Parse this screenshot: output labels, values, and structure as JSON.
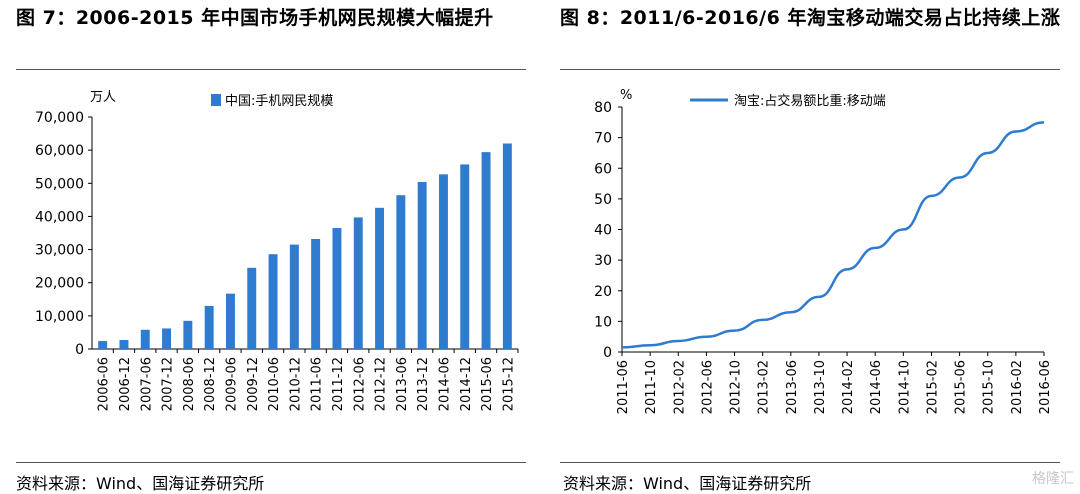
{
  "left": {
    "title": "图 7：2006-2015 年中国市场手机网民规模大幅提升",
    "source": "资料来源：Wind、国海证券研究所"
  },
  "right": {
    "title": "图 8：2011/6-2016/6 年淘宝移动端交易占比持续上涨",
    "source": "资料来源：Wind、国海证券研究所"
  },
  "watermark": "格隆汇",
  "colors": {
    "bar": "#2e7bcf",
    "line": "#2e7bcf"
  },
  "chart_data": [
    {
      "type": "bar",
      "title": "",
      "unit_label": "万人",
      "legend": "中国:手机网民规模",
      "categories": [
        "2006-06",
        "2006-12",
        "2007-06",
        "2007-12",
        "2008-06",
        "2008-12",
        "2009-06",
        "2009-12",
        "2010-06",
        "2010-12",
        "2011-06",
        "2011-12",
        "2012-06",
        "2012-12",
        "2013-06",
        "2013-12",
        "2014-06",
        "2014-12",
        "2015-06",
        "2015-12"
      ],
      "values": [
        2400,
        2700,
        5800,
        6200,
        8500,
        13000,
        16700,
        24500,
        28600,
        31500,
        33200,
        36500,
        39700,
        42600,
        46400,
        50400,
        52700,
        55700,
        59400,
        62000
      ],
      "ylim": [
        0,
        70000
      ],
      "yticks": [
        "0",
        "10,000",
        "20,000",
        "30,000",
        "40,000",
        "50,000",
        "60,000",
        "70,000"
      ],
      "ytick_values": [
        0,
        10000,
        20000,
        30000,
        40000,
        50000,
        60000,
        70000
      ]
    },
    {
      "type": "line",
      "title": "",
      "unit_label": "%",
      "legend": "淘宝:占交易额比重:移动端",
      "x": [
        "2011-06",
        "2011-10",
        "2012-02",
        "2012-06",
        "2012-10",
        "2013-02",
        "2013-06",
        "2013-10",
        "2014-02",
        "2014-06",
        "2014-10",
        "2015-02",
        "2015-06",
        "2015-10",
        "2016-02",
        "2016-06"
      ],
      "xticks": [
        "2011-06",
        "2011-10",
        "2012-02",
        "2012-06",
        "2012-10",
        "2013-02",
        "2013-06",
        "2013-10",
        "2014-02",
        "2014-06",
        "2014-10",
        "2015-02",
        "2015-06",
        "2015-10",
        "2016-02",
        "2016-06"
      ],
      "values": [
        1.5,
        2.2,
        3.6,
        5.0,
        7.0,
        10.5,
        13.0,
        18.0,
        27.0,
        34.0,
        40.0,
        51.0,
        57.0,
        65.0,
        72.0,
        75.0
      ],
      "ylim": [
        0,
        80
      ],
      "yticks": [
        "0",
        "10",
        "20",
        "30",
        "40",
        "50",
        "60",
        "70",
        "80"
      ],
      "ytick_values": [
        0,
        10,
        20,
        30,
        40,
        50,
        60,
        70,
        80
      ]
    }
  ]
}
